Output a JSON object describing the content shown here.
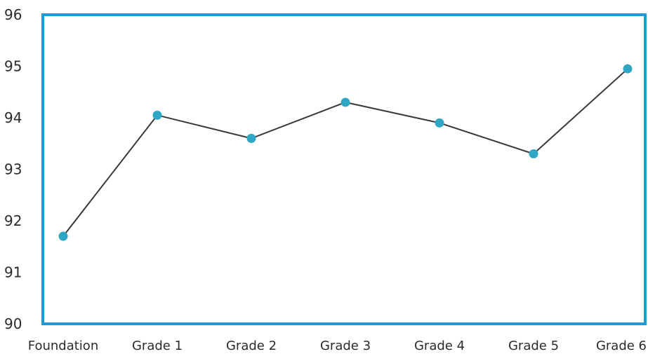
{
  "chart_data": {
    "type": "line",
    "title": "",
    "xlabel": "",
    "ylabel": "",
    "categories": [
      "Foundation",
      "Grade 1",
      "Grade 2",
      "Grade 3",
      "Grade 4",
      "Grade 5",
      "Grade 6"
    ],
    "series": [
      {
        "values": [
          91.7,
          94.05,
          93.6,
          94.3,
          93.9,
          93.3,
          94.95
        ]
      }
    ],
    "yticks": [
      "90",
      "91",
      "92",
      "93",
      "94",
      "95",
      "96"
    ],
    "ylim": [
      90,
      96
    ],
    "grid": false,
    "legend": "none",
    "colors": {
      "frame": "#1f9ad6",
      "line": "#3a3a3a",
      "marker": "#2fa6c4"
    }
  }
}
